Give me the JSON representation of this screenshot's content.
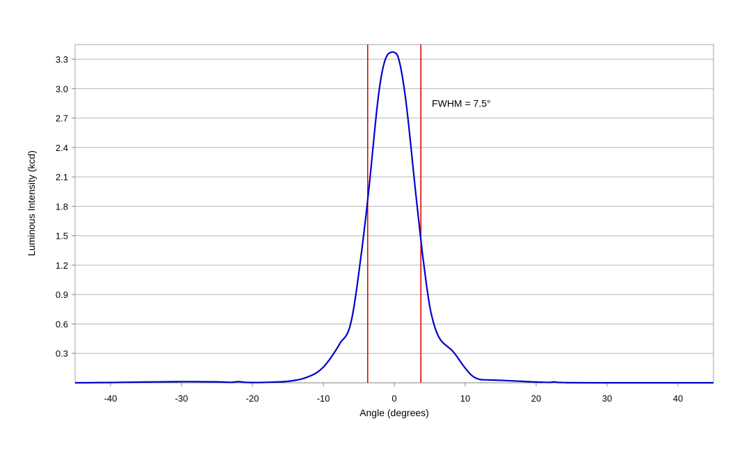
{
  "chart_data": {
    "type": "line",
    "title": "",
    "xlabel": "Angle (degrees)",
    "ylabel": "Luminous Intensity (kcd)",
    "xlim": [
      -45,
      45
    ],
    "ylim": [
      0,
      3.45
    ],
    "xticks": [
      -40,
      -30,
      -20,
      -10,
      0,
      10,
      20,
      30,
      40
    ],
    "yticks": [
      0.3,
      0.6,
      0.9,
      1.2,
      1.5,
      1.8,
      2.1,
      2.4,
      2.7,
      3.0,
      3.3
    ],
    "ytick_labels": [
      "0.3",
      "0.6",
      "0.9",
      "1.2",
      "1.5",
      "1.8",
      "2.1",
      "2.4",
      "2.7",
      "3.0",
      "3.3"
    ],
    "grid": "horizontal",
    "legend": "none",
    "series": [
      {
        "color": "#0000cc",
        "x": [
          -45,
          -40,
          -35,
          -30,
          -25,
          -23,
          -22,
          -21,
          -20,
          -18,
          -16,
          -15,
          -14,
          -13,
          -12,
          -11,
          -10,
          -9,
          -8,
          -7.5,
          -7,
          -6.5,
          -6,
          -5.5,
          -5,
          -4.5,
          -4,
          -3.5,
          -3,
          -2.5,
          -2,
          -1.5,
          -1,
          -0.5,
          0,
          0.5,
          1,
          1.5,
          2,
          2.5,
          3,
          3.5,
          4,
          4.5,
          5,
          5.5,
          6,
          6.5,
          7,
          7.5,
          8,
          8.5,
          9,
          10,
          11,
          12,
          13,
          15,
          18,
          20,
          21,
          22,
          22.5,
          23,
          24,
          25,
          30,
          35,
          40,
          45
        ],
        "y": [
          0,
          0.003,
          0.008,
          0.012,
          0.01,
          0.004,
          0.012,
          0.004,
          0.003,
          0.005,
          0.01,
          0.015,
          0.025,
          0.04,
          0.065,
          0.1,
          0.16,
          0.25,
          0.36,
          0.42,
          0.46,
          0.52,
          0.65,
          0.86,
          1.12,
          1.4,
          1.7,
          2.03,
          2.4,
          2.76,
          3.05,
          3.24,
          3.34,
          3.37,
          3.37,
          3.33,
          3.18,
          2.95,
          2.65,
          2.3,
          1.95,
          1.62,
          1.3,
          1.02,
          0.78,
          0.62,
          0.51,
          0.44,
          0.4,
          0.37,
          0.34,
          0.3,
          0.25,
          0.15,
          0.07,
          0.035,
          0.03,
          0.025,
          0.015,
          0.008,
          0.006,
          0.004,
          0.01,
          0.004,
          0.002,
          0.001,
          0,
          0,
          0,
          0
        ]
      }
    ],
    "vertical_lines": [
      {
        "x": -3.75,
        "color": "#dd0000"
      },
      {
        "x": 3.75,
        "color": "#dd0000"
      }
    ],
    "annotations": [
      {
        "text": "FWHM = 7.5°",
        "x": 5.3,
        "y": 2.85
      }
    ]
  }
}
